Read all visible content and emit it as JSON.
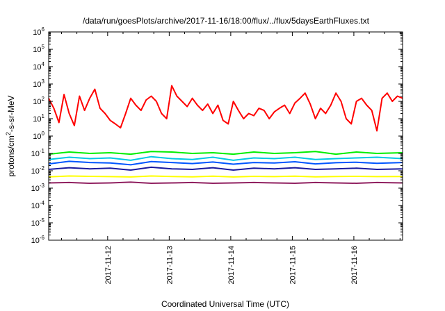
{
  "chart_data": {
    "type": "line",
    "title": "/data/run/goesPlots/archive/2017-11-16/18:00/flux/../flux/5daysEarthFluxes.txt",
    "xlabel": "Coordinated Universal Time (UTC)",
    "ylabel": {
      "prefix": "protons/cm",
      "sup": "2",
      "suffix": "-s-sr-MeV"
    },
    "y_scale": "log",
    "ylim": [
      1e-06,
      1000000
    ],
    "xlim": [
      "2017-11-11T01:00",
      "2017-11-16T19:00"
    ],
    "grid": false,
    "legend": "none",
    "x_ticks": [
      {
        "label": "2017-11-12",
        "date": "2017-11-12T00:00"
      },
      {
        "label": "2017-11-13",
        "date": "2017-11-13T00:00"
      },
      {
        "label": "2017-11-14",
        "date": "2017-11-14T00:00"
      },
      {
        "label": "2017-11-15",
        "date": "2017-11-15T00:00"
      },
      {
        "label": "2017-11-16",
        "date": "2017-11-16T00:00"
      }
    ],
    "y_ticks": [
      {
        "base": "10",
        "exp": "-6",
        "value": 1e-06
      },
      {
        "base": "10",
        "exp": "-5",
        "value": 1e-05
      },
      {
        "base": "10",
        "exp": "-4",
        "value": 0.0001
      },
      {
        "base": "10",
        "exp": "-3",
        "value": 0.001
      },
      {
        "base": "10",
        "exp": "-2",
        "value": 0.01
      },
      {
        "base": "10",
        "exp": "-1",
        "value": 0.1
      },
      {
        "base": "10",
        "exp": "0",
        "value": 1
      },
      {
        "base": "10",
        "exp": "1",
        "value": 10
      },
      {
        "base": "10",
        "exp": "2",
        "value": 100
      },
      {
        "base": "10",
        "exp": "3",
        "value": 1000
      },
      {
        "base": "10",
        "exp": "4",
        "value": 10000
      },
      {
        "base": "10",
        "exp": "5",
        "value": 100000
      },
      {
        "base": "10",
        "exp": "6",
        "value": 1000000
      }
    ],
    "series": [
      {
        "color": "#ff0000",
        "x": [
          "2017-11-11T01:00",
          "2017-11-11T03:00",
          "2017-11-11T05:00",
          "2017-11-11T07:00",
          "2017-11-11T09:00",
          "2017-11-11T11:00",
          "2017-11-11T13:00",
          "2017-11-11T15:00",
          "2017-11-11T17:00",
          "2017-11-11T19:00",
          "2017-11-11T21:00",
          "2017-11-11T23:00",
          "2017-11-12T01:00",
          "2017-11-12T03:00",
          "2017-11-12T05:00",
          "2017-11-12T07:00",
          "2017-11-12T09:00",
          "2017-11-12T11:00",
          "2017-11-12T13:00",
          "2017-11-12T15:00",
          "2017-11-12T17:00",
          "2017-11-12T19:00",
          "2017-11-12T21:00",
          "2017-11-12T23:00",
          "2017-11-13T01:00",
          "2017-11-13T03:00",
          "2017-11-13T05:00",
          "2017-11-13T07:00",
          "2017-11-13T09:00",
          "2017-11-13T11:00",
          "2017-11-13T13:00",
          "2017-11-13T15:00",
          "2017-11-13T17:00",
          "2017-11-13T19:00",
          "2017-11-13T21:00",
          "2017-11-13T23:00",
          "2017-11-14T01:00",
          "2017-11-14T03:00",
          "2017-11-14T05:00",
          "2017-11-14T07:00",
          "2017-11-14T09:00",
          "2017-11-14T11:00",
          "2017-11-14T13:00",
          "2017-11-14T15:00",
          "2017-11-14T17:00",
          "2017-11-14T19:00",
          "2017-11-14T21:00",
          "2017-11-14T23:00",
          "2017-11-15T01:00",
          "2017-11-15T03:00",
          "2017-11-15T05:00",
          "2017-11-15T07:00",
          "2017-11-15T09:00",
          "2017-11-15T11:00",
          "2017-11-15T13:00",
          "2017-11-15T15:00",
          "2017-11-15T17:00",
          "2017-11-15T19:00",
          "2017-11-15T21:00",
          "2017-11-15T23:00",
          "2017-11-16T01:00",
          "2017-11-16T03:00",
          "2017-11-16T05:00",
          "2017-11-16T07:00",
          "2017-11-16T09:00",
          "2017-11-16T11:00",
          "2017-11-16T13:00",
          "2017-11-16T15:00",
          "2017-11-16T17:00",
          "2017-11-16T19:00"
        ],
        "y": [
          150,
          40,
          6,
          250,
          20,
          4,
          200,
          30,
          150,
          500,
          40,
          20,
          8,
          5,
          3,
          20,
          150,
          60,
          30,
          120,
          200,
          100,
          20,
          10,
          800,
          200,
          100,
          50,
          150,
          60,
          30,
          70,
          20,
          60,
          8,
          5,
          100,
          30,
          10,
          20,
          15,
          40,
          30,
          10,
          25,
          40,
          60,
          20,
          80,
          150,
          300,
          70,
          10,
          40,
          20,
          60,
          300,
          100,
          10,
          5,
          100,
          150,
          60,
          30,
          2,
          150,
          300,
          100,
          200,
          150
        ]
      },
      {
        "color": "#00ee00",
        "x": [
          "2017-11-11T01:00",
          "2017-11-11T09:00",
          "2017-11-11T17:00",
          "2017-11-12T01:00",
          "2017-11-12T09:00",
          "2017-11-12T17:00",
          "2017-11-13T01:00",
          "2017-11-13T09:00",
          "2017-11-13T17:00",
          "2017-11-14T01:00",
          "2017-11-14T09:00",
          "2017-11-14T17:00",
          "2017-11-15T01:00",
          "2017-11-15T09:00",
          "2017-11-15T17:00",
          "2017-11-16T01:00",
          "2017-11-16T09:00",
          "2017-11-16T19:00"
        ],
        "y": [
          0.09,
          0.12,
          0.1,
          0.11,
          0.09,
          0.13,
          0.12,
          0.1,
          0.11,
          0.09,
          0.12,
          0.1,
          0.11,
          0.13,
          0.09,
          0.12,
          0.1,
          0.11
        ]
      },
      {
        "color": "#00c8e6",
        "x": [
          "2017-11-11T01:00",
          "2017-11-11T09:00",
          "2017-11-11T17:00",
          "2017-11-12T01:00",
          "2017-11-12T09:00",
          "2017-11-12T17:00",
          "2017-11-13T01:00",
          "2017-11-13T09:00",
          "2017-11-13T17:00",
          "2017-11-14T01:00",
          "2017-11-14T09:00",
          "2017-11-14T17:00",
          "2017-11-15T01:00",
          "2017-11-15T09:00",
          "2017-11-15T17:00",
          "2017-11-16T01:00",
          "2017-11-16T09:00",
          "2017-11-16T19:00"
        ],
        "y": [
          0.045,
          0.06,
          0.05,
          0.055,
          0.04,
          0.065,
          0.05,
          0.045,
          0.06,
          0.04,
          0.055,
          0.05,
          0.06,
          0.045,
          0.05,
          0.055,
          0.06,
          0.05
        ]
      },
      {
        "color": "#0055ff",
        "x": [
          "2017-11-11T01:00",
          "2017-11-11T09:00",
          "2017-11-11T17:00",
          "2017-11-12T01:00",
          "2017-11-12T09:00",
          "2017-11-12T17:00",
          "2017-11-13T01:00",
          "2017-11-13T09:00",
          "2017-11-13T17:00",
          "2017-11-14T01:00",
          "2017-11-14T09:00",
          "2017-11-14T17:00",
          "2017-11-15T01:00",
          "2017-11-15T09:00",
          "2017-11-15T17:00",
          "2017-11-16T01:00",
          "2017-11-16T09:00",
          "2017-11-16T19:00"
        ],
        "y": [
          0.025,
          0.035,
          0.03,
          0.028,
          0.022,
          0.034,
          0.03,
          0.026,
          0.032,
          0.024,
          0.03,
          0.028,
          0.033,
          0.025,
          0.029,
          0.031,
          0.027,
          0.03
        ]
      },
      {
        "color": "#1a1aa0",
        "x": [
          "2017-11-11T01:00",
          "2017-11-11T09:00",
          "2017-11-11T17:00",
          "2017-11-12T01:00",
          "2017-11-12T09:00",
          "2017-11-12T17:00",
          "2017-11-13T01:00",
          "2017-11-13T09:00",
          "2017-11-13T17:00",
          "2017-11-14T01:00",
          "2017-11-14T09:00",
          "2017-11-14T17:00",
          "2017-11-15T01:00",
          "2017-11-15T09:00",
          "2017-11-15T17:00",
          "2017-11-16T01:00",
          "2017-11-16T09:00",
          "2017-11-16T19:00"
        ],
        "y": [
          0.012,
          0.015,
          0.013,
          0.014,
          0.011,
          0.016,
          0.013,
          0.012,
          0.015,
          0.011,
          0.014,
          0.013,
          0.015,
          0.012,
          0.013,
          0.014,
          0.012,
          0.013
        ]
      },
      {
        "color": "#ffff00",
        "x": [
          "2017-11-11T01:00",
          "2017-11-11T09:00",
          "2017-11-11T17:00",
          "2017-11-12T01:00",
          "2017-11-12T09:00",
          "2017-11-12T17:00",
          "2017-11-13T01:00",
          "2017-11-13T09:00",
          "2017-11-13T17:00",
          "2017-11-14T01:00",
          "2017-11-14T09:00",
          "2017-11-14T17:00",
          "2017-11-15T01:00",
          "2017-11-15T09:00",
          "2017-11-15T17:00",
          "2017-11-16T01:00",
          "2017-11-16T09:00",
          "2017-11-16T19:00"
        ],
        "y": [
          0.0045,
          0.005,
          0.0048,
          0.0046,
          0.0044,
          0.005,
          0.0047,
          0.0045,
          0.0049,
          0.0044,
          0.0048,
          0.0046,
          0.0049,
          0.0045,
          0.0047,
          0.0048,
          0.0046,
          0.0047
        ]
      },
      {
        "color": "#902060",
        "x": [
          "2017-11-11T01:00",
          "2017-11-11T09:00",
          "2017-11-11T17:00",
          "2017-11-12T01:00",
          "2017-11-12T09:00",
          "2017-11-12T17:00",
          "2017-11-13T01:00",
          "2017-11-13T09:00",
          "2017-11-13T17:00",
          "2017-11-14T01:00",
          "2017-11-14T09:00",
          "2017-11-14T17:00",
          "2017-11-15T01:00",
          "2017-11-15T09:00",
          "2017-11-15T17:00",
          "2017-11-16T01:00",
          "2017-11-16T09:00",
          "2017-11-16T19:00"
        ],
        "y": [
          0.002,
          0.0021,
          0.0019,
          0.002,
          0.0022,
          0.0019,
          0.002,
          0.0021,
          0.0019,
          0.002,
          0.0021,
          0.002,
          0.0019,
          0.0021,
          0.002,
          0.0019,
          0.0021,
          0.002
        ]
      }
    ]
  }
}
